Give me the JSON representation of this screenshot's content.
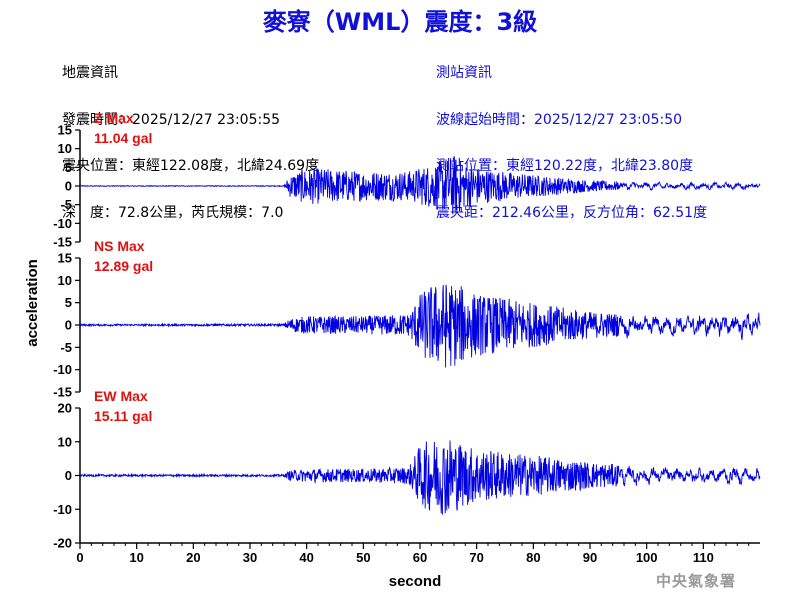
{
  "title": "麥寮（WML）震度：3級",
  "quake_info": {
    "heading": "地震資訊",
    "origin_time": "發震時間：2025/12/27 23:05:55",
    "epicenter": "震央位置：東經122.08度，北緯24.69度",
    "depth_magnitude": "深　度：72.8公里，芮氏規模：7.0"
  },
  "station_info": {
    "heading": "測站資訊",
    "wave_start": "波線起始時間：2025/12/27 23:05:50",
    "station_location": "測站位置：東經120.22度，北緯23.80度",
    "distance_azimuth": "震央距：212.46公里，反方位角：62.51度"
  },
  "agency": "中央氣象署",
  "chart_data": {
    "type": "line",
    "xlabel": "second",
    "ylabel": "acceleration",
    "xlim": [
      0,
      120
    ],
    "xticks": [
      0,
      10,
      20,
      30,
      40,
      50,
      60,
      70,
      80,
      90,
      100,
      110
    ],
    "line_color": "#0000e0",
    "panels": [
      {
        "component": "Z",
        "max_label": "Z Max",
        "max_value": "11.04 gal",
        "peak": 11.04,
        "ylim": [
          -15,
          15
        ],
        "yticks": [
          15,
          10,
          5,
          0,
          -5,
          -10,
          -15
        ],
        "envelope_seconds": [
          0,
          36,
          37,
          40,
          50,
          58,
          62,
          64,
          66,
          68,
          72,
          80,
          90,
          100,
          120
        ],
        "envelope_amplitude": [
          0.1,
          0.1,
          3,
          5,
          4,
          4,
          6,
          7,
          8.5,
          6,
          4.5,
          3,
          1.5,
          1,
          0.8
        ]
      },
      {
        "component": "NS",
        "max_label": "NS Max",
        "max_value": "12.89 gal",
        "peak": 12.89,
        "ylim": [
          -15,
          15
        ],
        "yticks": [
          15,
          10,
          5,
          0,
          -5,
          -10,
          -15
        ],
        "envelope_seconds": [
          0,
          36,
          37,
          40,
          50,
          58,
          60,
          62,
          65,
          67,
          70,
          80,
          90,
          100,
          110,
          120
        ],
        "envelope_amplitude": [
          0.2,
          0.25,
          1.5,
          2,
          2,
          2.5,
          7,
          9,
          10,
          9,
          7,
          5,
          3,
          2.2,
          2.5,
          3
        ]
      },
      {
        "component": "EW",
        "max_label": "EW Max",
        "max_value": "15.11 gal",
        "peak": 15.11,
        "ylim": [
          -20,
          20
        ],
        "yticks": [
          20,
          10,
          0,
          -10,
          -20
        ],
        "envelope_seconds": [
          0,
          36,
          37,
          40,
          50,
          58,
          60,
          62,
          65,
          67,
          70,
          80,
          90,
          100,
          110,
          120
        ],
        "envelope_amplitude": [
          0.3,
          0.3,
          1.5,
          2,
          2,
          2.5,
          9,
          11,
          12,
          10,
          8,
          6,
          4,
          2.5,
          2.5,
          2.5
        ]
      }
    ]
  }
}
